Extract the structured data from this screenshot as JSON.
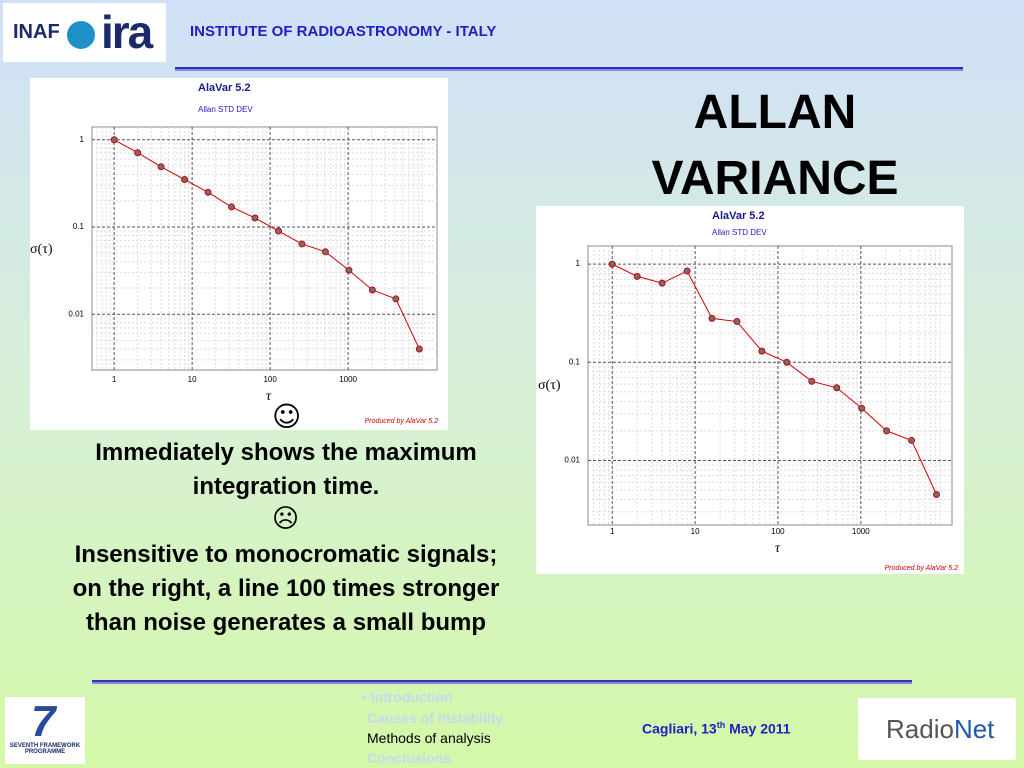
{
  "header": {
    "logo_inaf": "INAF",
    "logo_ira": "ira",
    "institute": "INSTITUTE OF RADIOASTRONOMY - ITALY"
  },
  "title": [
    "ALLAN",
    "VARIANCE"
  ],
  "charts": [
    {
      "type": "line",
      "title": "AlaVar 5.2",
      "subtitle": "Allan STD DEV",
      "xlabel": "τ",
      "ylabel": "σ(τ)",
      "credit": "Produced by AlaVar 5.2",
      "xscale": "log",
      "yscale": "log",
      "grid": true,
      "xlim": [
        0.52,
        13800
      ],
      "ylim": [
        0.0023,
        1.4
      ],
      "xticks": [
        1,
        10,
        100,
        1000
      ],
      "yticks": [
        1,
        0.1,
        0.01
      ],
      "series": [
        {
          "color": "#d00000",
          "marker_color": "#707070",
          "x": [
            1,
            2,
            4,
            8,
            16,
            32,
            64,
            128,
            256,
            512,
            1024,
            2048,
            4096,
            8192
          ],
          "values": [
            1,
            0.71,
            0.49,
            0.35,
            0.25,
            0.17,
            0.127,
            0.09,
            0.064,
            0.052,
            0.032,
            0.019,
            0.015,
            0.004
          ]
        }
      ]
    },
    {
      "type": "line",
      "title": "AlaVar 5.2",
      "subtitle": "Allan STD DEV",
      "xlabel": "τ",
      "ylabel": "σ(τ)",
      "credit": "Produced by AlaVar 5.2",
      "xscale": "log",
      "yscale": "log",
      "grid": true,
      "xlim": [
        0.51,
        12600
      ],
      "ylim": [
        0.0022,
        1.53
      ],
      "xticks": [
        1,
        10,
        100,
        1000
      ],
      "yticks": [
        1,
        0.1,
        0.01
      ],
      "series": [
        {
          "color": "#d00000",
          "marker_color": "#707070",
          "x": [
            1,
            2,
            4,
            8,
            16,
            32,
            64,
            128,
            256,
            512,
            1024,
            2048,
            4096,
            8192
          ],
          "values": [
            1,
            0.75,
            0.64,
            0.85,
            0.28,
            0.26,
            0.13,
            0.1,
            0.064,
            0.055,
            0.034,
            0.02,
            0.016,
            0.0045
          ]
        }
      ]
    }
  ],
  "body": {
    "smile": "☺",
    "text1": "Immediately shows the maximum integration time.",
    "frown": "☹",
    "text2": "Insensitive to monocromatic signals; on the right, a line 100 times stronger than noise generates a small bump"
  },
  "footer": {
    "nav": [
      "• Introduction",
      "Causes of Instability",
      "Methods of analysis",
      "Conclusions"
    ],
    "date_pre": "Cagliari, 13",
    "date_sup": "th",
    "date_post": " May 2011",
    "fp7": "SEVENTH FRAMEWORK PROGRAMME",
    "radionet_a": "Radio",
    "radionet_b": "Net"
  }
}
